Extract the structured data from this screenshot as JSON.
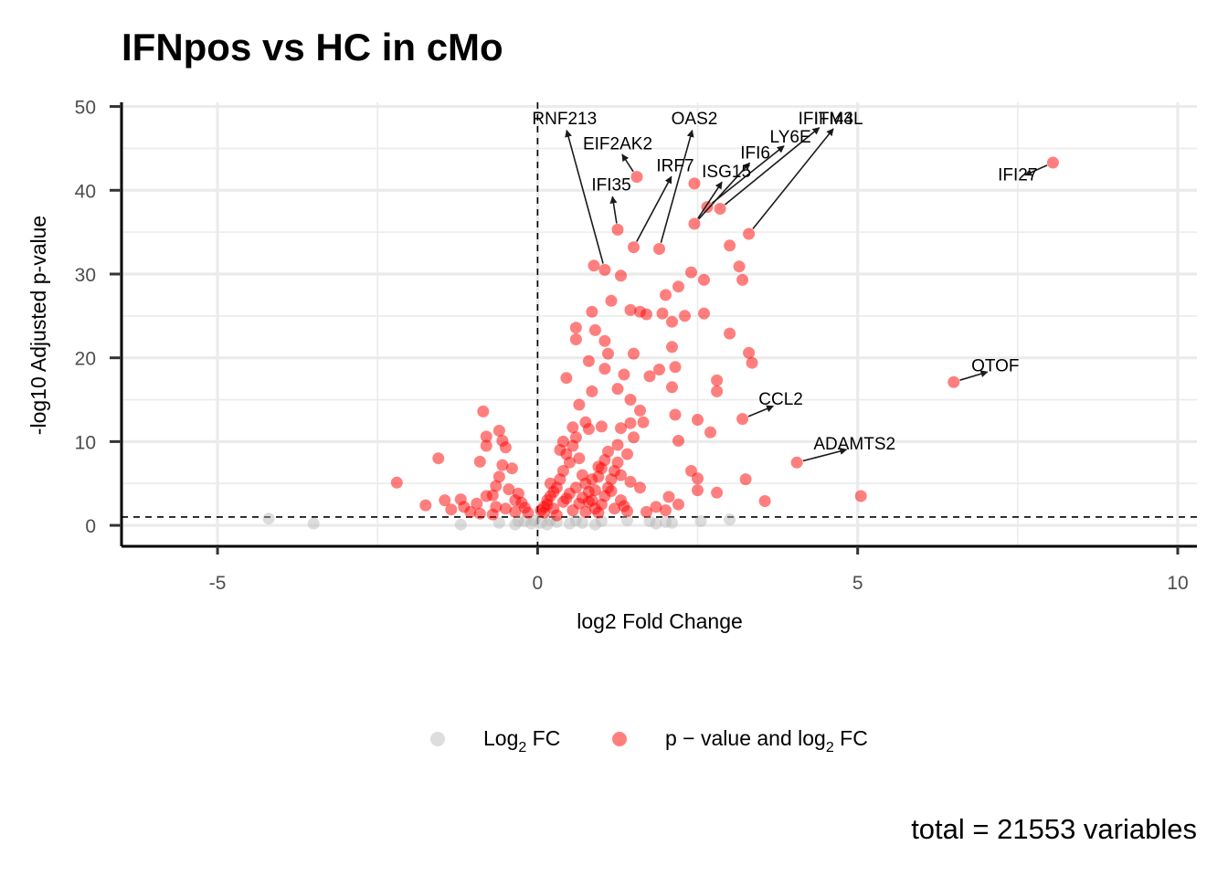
{
  "chart_data": {
    "type": "scatter",
    "title": "IFNpos vs HC in cMo",
    "xlabel": "log2 Fold Change",
    "ylabel": "-log10 Adjusted p-value",
    "xlim": [
      -6.5,
      10.3
    ],
    "ylim": [
      -2.5,
      50.5
    ],
    "x_ticks": [
      -5,
      0,
      5,
      10
    ],
    "y_ticks": [
      0,
      10,
      20,
      30,
      40,
      50
    ],
    "x_tick_labels": [
      "-5",
      "0",
      "5",
      "10"
    ],
    "y_tick_labels": [
      "0",
      "10",
      "20",
      "30",
      "40",
      "50"
    ],
    "thresholds": {
      "vertical_x": 0,
      "horizontal_y": 1
    },
    "grid": true,
    "legend_position": "bottom",
    "legend": [
      {
        "key": "ns",
        "label_main": "Log",
        "label_sub": "2",
        "label_tail": " FC",
        "color": "#b3b3b3"
      },
      {
        "key": "sig",
        "label_main": "p − value and log",
        "label_sub": "2",
        "label_tail": " FC",
        "color": "#ff0000"
      }
    ],
    "caption": "total = 21553 variables",
    "series": [
      {
        "key": "ns",
        "color": "#b3b3b3",
        "points": [
          [
            -4.2,
            0.8
          ],
          [
            -3.5,
            0.2
          ],
          [
            -1.2,
            0.1
          ],
          [
            -0.6,
            0.3
          ],
          [
            -0.35,
            0.1
          ],
          [
            -0.2,
            0.5
          ],
          [
            -0.1,
            0.2
          ],
          [
            0.05,
            0.3
          ],
          [
            0.15,
            0.1
          ],
          [
            0.3,
            0.4
          ],
          [
            0.5,
            0.2
          ],
          [
            0.7,
            0.3
          ],
          [
            0.9,
            0.1
          ],
          [
            1.0,
            0.5
          ],
          [
            1.4,
            0.6
          ],
          [
            1.75,
            0.5
          ],
          [
            1.85,
            0.2
          ],
          [
            2.0,
            0.4
          ],
          [
            2.1,
            0.3
          ],
          [
            2.55,
            0.5
          ],
          [
            3.0,
            0.7
          ],
          [
            -0.05,
            0.6
          ],
          [
            0.2,
            0.6
          ],
          [
            0.6,
            0.6
          ],
          [
            -0.3,
            0.5
          ]
        ]
      },
      {
        "key": "sig",
        "color": "#ff0000",
        "points": [
          [
            8.05,
            43.3
          ],
          [
            6.5,
            17.1
          ],
          [
            4.05,
            7.5
          ],
          [
            3.2,
            12.7
          ],
          [
            3.3,
            34.8
          ],
          [
            1.05,
            30.5
          ],
          [
            1.55,
            41.6
          ],
          [
            1.25,
            35.3
          ],
          [
            1.5,
            33.2
          ],
          [
            1.9,
            33.0
          ],
          [
            2.45,
            36.0
          ],
          [
            2.45,
            40.8
          ],
          [
            2.65,
            38.0
          ],
          [
            2.85,
            37.8
          ],
          [
            0.88,
            31.0
          ],
          [
            1.3,
            29.8
          ],
          [
            1.15,
            26.8
          ],
          [
            0.85,
            25.5
          ],
          [
            0.6,
            23.6
          ],
          [
            0.6,
            22.2
          ],
          [
            0.9,
            23.3
          ],
          [
            1.05,
            22.0
          ],
          [
            1.1,
            20.5
          ],
          [
            0.8,
            19.6
          ],
          [
            1.05,
            18.7
          ],
          [
            1.25,
            16.3
          ],
          [
            0.85,
            16.0
          ],
          [
            0.45,
            17.6
          ],
          [
            0.65,
            14.4
          ],
          [
            0.75,
            12.3
          ],
          [
            0.55,
            11.7
          ],
          [
            0.8,
            11.5
          ],
          [
            1.0,
            11.8
          ],
          [
            1.3,
            11.6
          ],
          [
            1.45,
            12.2
          ],
          [
            1.6,
            13.7
          ],
          [
            1.65,
            12.3
          ],
          [
            1.4,
            8.5
          ],
          [
            1.25,
            9.6
          ],
          [
            1.45,
            25.7
          ],
          [
            1.6,
            25.5
          ],
          [
            1.7,
            25.2
          ],
          [
            1.95,
            25.3
          ],
          [
            2.0,
            27.5
          ],
          [
            2.2,
            28.5
          ],
          [
            2.1,
            24.3
          ],
          [
            2.3,
            25.0
          ],
          [
            2.1,
            21.3
          ],
          [
            2.15,
            18.9
          ],
          [
            1.9,
            18.6
          ],
          [
            2.1,
            16.5
          ],
          [
            2.15,
            13.2
          ],
          [
            2.2,
            10.1
          ],
          [
            2.5,
            12.6
          ],
          [
            2.7,
            11.1
          ],
          [
            2.4,
            30.2
          ],
          [
            2.6,
            29.3
          ],
          [
            2.6,
            25.3
          ],
          [
            3.0,
            33.4
          ],
          [
            3.15,
            30.9
          ],
          [
            3.2,
            29.3
          ],
          [
            3.0,
            22.9
          ],
          [
            3.3,
            20.6
          ],
          [
            3.35,
            19.4
          ],
          [
            2.8,
            17.3
          ],
          [
            2.8,
            16.0
          ],
          [
            3.25,
            5.5
          ],
          [
            3.55,
            2.9
          ],
          [
            5.05,
            3.5
          ],
          [
            2.5,
            5.6
          ],
          [
            2.4,
            6.5
          ],
          [
            2.5,
            4.2
          ],
          [
            2.8,
            3.9
          ],
          [
            2.05,
            3.4
          ],
          [
            2.0,
            1.8
          ],
          [
            2.2,
            2.5
          ],
          [
            1.85,
            2.2
          ],
          [
            1.7,
            1.6
          ],
          [
            1.6,
            4.5
          ],
          [
            1.45,
            5.2
          ],
          [
            1.3,
            6.0
          ],
          [
            1.15,
            4.1
          ],
          [
            1.5,
            10.5
          ],
          [
            1.35,
            18.0
          ],
          [
            1.45,
            15.0
          ],
          [
            1.5,
            20.5
          ],
          [
            1.75,
            17.8
          ],
          [
            -2.2,
            5.1
          ],
          [
            -1.55,
            8.0
          ],
          [
            -1.75,
            2.4
          ],
          [
            -1.45,
            3.0
          ],
          [
            -1.35,
            1.9
          ],
          [
            -1.2,
            3.1
          ],
          [
            -1.15,
            2.2
          ],
          [
            -1.05,
            1.6
          ],
          [
            -0.95,
            2.6
          ],
          [
            -0.9,
            1.4
          ],
          [
            -0.8,
            3.5
          ],
          [
            -0.85,
            13.6
          ],
          [
            -0.8,
            10.6
          ],
          [
            -0.8,
            9.5
          ],
          [
            -0.9,
            7.6
          ],
          [
            -0.6,
            11.3
          ],
          [
            -0.55,
            10.1
          ],
          [
            -0.5,
            9.3
          ],
          [
            -0.55,
            7.2
          ],
          [
            -0.4,
            6.8
          ],
          [
            -0.6,
            5.8
          ],
          [
            -0.65,
            4.7
          ],
          [
            -0.45,
            4.3
          ],
          [
            -0.35,
            3.0
          ],
          [
            -0.25,
            2.7
          ],
          [
            -0.2,
            2.1
          ],
          [
            -0.15,
            1.5
          ],
          [
            -0.5,
            2.0
          ],
          [
            -0.65,
            2.2
          ],
          [
            -0.7,
            1.3
          ],
          [
            -0.35,
            1.6
          ],
          [
            -0.3,
            3.8
          ],
          [
            -0.7,
            3.6
          ],
          [
            0.1,
            1.5
          ],
          [
            0.15,
            2.5
          ],
          [
            0.2,
            3.5
          ],
          [
            0.3,
            4.5
          ],
          [
            0.35,
            5.5
          ],
          [
            0.4,
            6.5
          ],
          [
            0.5,
            7.5
          ],
          [
            0.45,
            8.5
          ],
          [
            0.55,
            9.5
          ],
          [
            0.6,
            10.5
          ],
          [
            0.65,
            8.0
          ],
          [
            0.7,
            6.0
          ],
          [
            0.75,
            5.0
          ],
          [
            0.8,
            4.0
          ],
          [
            0.85,
            3.0
          ],
          [
            0.9,
            2.0
          ],
          [
            0.95,
            1.5
          ],
          [
            1.0,
            2.5
          ],
          [
            1.05,
            3.5
          ],
          [
            1.1,
            4.5
          ],
          [
            1.15,
            5.5
          ],
          [
            1.2,
            6.5
          ],
          [
            1.25,
            7.5
          ],
          [
            1.2,
            2.0
          ],
          [
            1.3,
            3.0
          ],
          [
            1.35,
            2.3
          ],
          [
            1.4,
            1.7
          ],
          [
            0.25,
            2.0
          ],
          [
            0.3,
            1.2
          ],
          [
            0.4,
            2.8
          ],
          [
            0.5,
            3.8
          ],
          [
            0.55,
            1.8
          ],
          [
            0.65,
            2.6
          ],
          [
            0.7,
            3.3
          ],
          [
            0.75,
            1.6
          ],
          [
            0.8,
            2.8
          ],
          [
            0.9,
            4.2
          ],
          [
            0.95,
            5.8
          ],
          [
            1.0,
            6.8
          ],
          [
            1.05,
            7.8
          ],
          [
            0.35,
            9.0
          ],
          [
            0.4,
            10.0
          ],
          [
            0.45,
            3.2
          ],
          [
            0.6,
            4.5
          ],
          [
            0.85,
            5.5
          ],
          [
            0.95,
            7.0
          ],
          [
            1.1,
            8.8
          ],
          [
            0.2,
            5.0
          ],
          [
            0.25,
            4.0
          ],
          [
            0.15,
            3.0
          ],
          [
            0.1,
            2.2
          ],
          [
            0.05,
            1.8
          ]
        ]
      }
    ],
    "labels": [
      {
        "text": "RNF213",
        "x": 1.05,
        "y": 30.5,
        "lx": 0.42,
        "ly": 48.1
      },
      {
        "text": "EIF2AK2",
        "x": 1.55,
        "y": 41.6,
        "lx": 1.25,
        "ly": 45.1
      },
      {
        "text": "IRF7",
        "x": 1.5,
        "y": 33.2,
        "lx": 2.15,
        "ly": 42.5
      },
      {
        "text": "IFI35",
        "x": 1.25,
        "y": 35.3,
        "lx": 1.15,
        "ly": 40.2
      },
      {
        "text": "OAS2",
        "x": 1.9,
        "y": 33.0,
        "lx": 2.45,
        "ly": 48.1
      },
      {
        "text": "ISG15",
        "x": 2.45,
        "y": 36.0,
        "lx": 2.95,
        "ly": 41.8
      },
      {
        "text": "IFI6",
        "x": 2.45,
        "y": 36.0,
        "lx": 3.4,
        "ly": 44.0
      },
      {
        "text": "LY6E",
        "x": 2.65,
        "y": 38.0,
        "lx": 3.95,
        "ly": 45.9
      },
      {
        "text": "IFITM3",
        "x": 2.85,
        "y": 37.8,
        "lx": 4.5,
        "ly": 48.1
      },
      {
        "text": "IFI44L",
        "x": 3.3,
        "y": 34.8,
        "lx": 4.7,
        "ly": 48.1
      },
      {
        "text": "IFI27",
        "x": 8.05,
        "y": 43.3,
        "lx": 7.5,
        "ly": 41.4
      },
      {
        "text": "OTOF",
        "x": 6.5,
        "y": 17.1,
        "lx": 7.15,
        "ly": 18.6
      },
      {
        "text": "CCL2",
        "x": 3.2,
        "y": 12.7,
        "lx": 3.8,
        "ly": 14.6
      },
      {
        "text": "ADAMTS2",
        "x": 4.05,
        "y": 7.5,
        "lx": 4.95,
        "ly": 9.3
      }
    ]
  }
}
